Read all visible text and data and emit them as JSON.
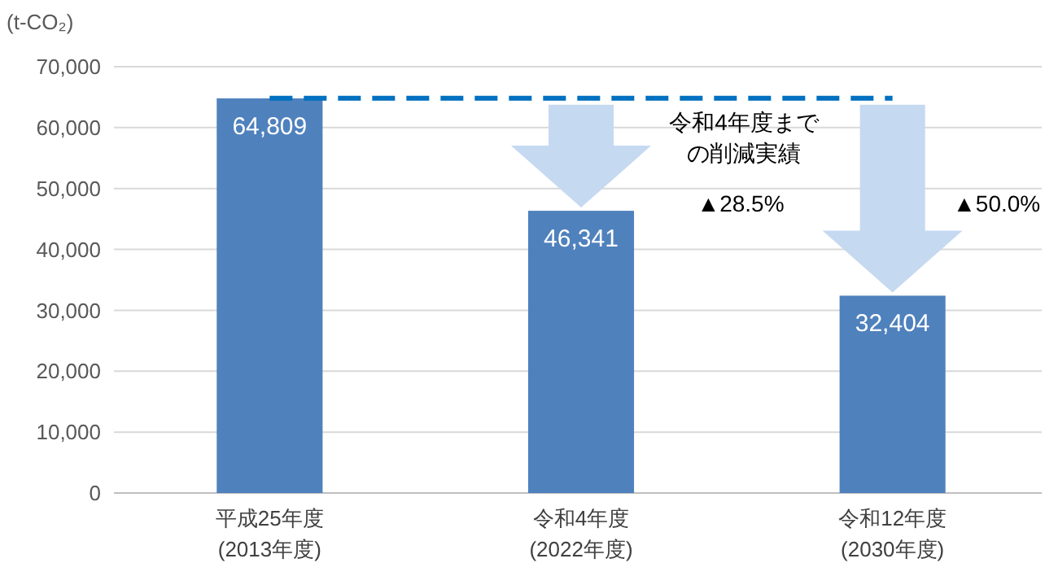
{
  "chart_data": {
    "type": "bar",
    "ylabel": "(t-CO₂)",
    "categories": [
      "平成25年度\n(2013年度)",
      "令和4年度\n(2022年度)",
      "令和12年度\n(2030年度)"
    ],
    "values": [
      64809,
      46341,
      32404
    ],
    "color": "#4f81bd",
    "value_labels": [
      "64,809",
      "46,341",
      "32,404"
    ],
    "ylim": [
      0,
      70000
    ],
    "yticks": [
      {
        "value": 0,
        "label": "0"
      },
      {
        "value": 10000,
        "label": "10,000"
      },
      {
        "value": 20000,
        "label": "20,000"
      },
      {
        "value": 30000,
        "label": "30,000"
      },
      {
        "value": 40000,
        "label": "40,000"
      },
      {
        "value": 50000,
        "label": "50,000"
      },
      {
        "value": 60000,
        "label": "60,000"
      },
      {
        "value": 70000,
        "label": "70,000"
      }
    ],
    "grid": "y",
    "ref_lines": [
      {
        "axis": "y",
        "value": 64809,
        "color": "#0070c0",
        "line_style": "dashed"
      }
    ],
    "annotations": [
      "令和4年度までの削減実績",
      "▲28.5%",
      "▲50.0%"
    ]
  }
}
